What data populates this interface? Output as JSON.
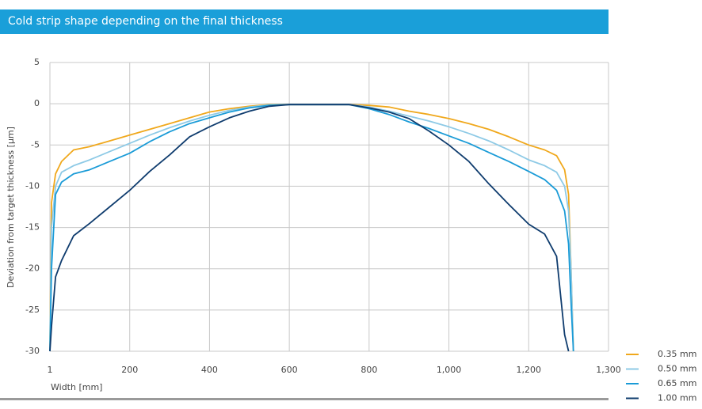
{
  "chart_data": {
    "type": "line",
    "title": "Cold strip shape depending on the final thickness",
    "xlabel": "Width [mm]",
    "ylabel": "Deviation from target thickness [µm]",
    "x": [
      1,
      5,
      15,
      30,
      60,
      100,
      150,
      200,
      250,
      300,
      350,
      400,
      450,
      500,
      550,
      600,
      650,
      700,
      750,
      800,
      850,
      900,
      950,
      1000,
      1050,
      1100,
      1150,
      1200,
      1220,
      1235,
      1245,
      1250,
      1253,
      1256
    ],
    "xlim": [
      1,
      1300
    ],
    "xticks": [
      1,
      200,
      400,
      600,
      800,
      {
        "value": 1000,
        "label": "1,000"
      },
      {
        "value": 1200,
        "label": "1,200"
      },
      {
        "value": 1300,
        "label": "1,300"
      }
    ],
    "ylim": [
      -30,
      5
    ],
    "yticks": [
      -30,
      -25,
      -20,
      -15,
      -10,
      -5,
      0,
      5
    ],
    "grid": true,
    "legend": "lower right",
    "series": [
      {
        "name": "0.35 mm",
        "color": "#f0a81c",
        "values": [
          -30,
          -12,
          -8.5,
          -7,
          -5.6,
          -5.2,
          -4.5,
          -3.8,
          -3.1,
          -2.4,
          -1.7,
          -1,
          -0.6,
          -0.3,
          -0.1,
          -0.1,
          -0.1,
          -0.1,
          -0.1,
          -0.2,
          -0.4,
          -0.9,
          -1.3,
          -1.8,
          -2.4,
          -3.1,
          -4,
          -5,
          -5.6,
          -6.3,
          -8,
          -11,
          -20,
          -30
        ]
      },
      {
        "name": "0.50 mm",
        "color": "#8ecae6",
        "values": [
          -30,
          -15,
          -10,
          -8.3,
          -7.5,
          -6.8,
          -5.8,
          -4.8,
          -3.8,
          -2.9,
          -2.1,
          -1.4,
          -0.8,
          -0.4,
          -0.15,
          -0.1,
          -0.1,
          -0.1,
          -0.1,
          -0.4,
          -0.9,
          -1.5,
          -2.1,
          -2.8,
          -3.6,
          -4.5,
          -5.6,
          -6.8,
          -7.5,
          -8.3,
          -10,
          -13,
          -20,
          -30
        ]
      },
      {
        "name": "0.65 mm",
        "color": "#1a9bd7",
        "values": [
          -30,
          -20,
          -11,
          -9.5,
          -8.5,
          -8,
          -7,
          -6,
          -4.6,
          -3.4,
          -2.4,
          -1.7,
          -1,
          -0.5,
          -0.2,
          -0.1,
          -0.1,
          -0.1,
          -0.1,
          -0.6,
          -1.3,
          -2.2,
          -3,
          -3.9,
          -4.8,
          -5.9,
          -7,
          -8.2,
          -9.2,
          -10.5,
          -13,
          -17,
          -24,
          -30
        ]
      },
      {
        "name": "1.00 mm",
        "color": "#0f3c6e",
        "values": [
          -30,
          -27,
          -21,
          -19,
          -16,
          -14.5,
          -12.5,
          -10.5,
          -8.2,
          -6.2,
          -4,
          -2.8,
          -1.7,
          -0.9,
          -0.3,
          -0.1,
          -0.1,
          -0.1,
          -0.1,
          -0.5,
          -1,
          -1.8,
          -3.3,
          -5,
          -7,
          -9.7,
          -12.2,
          -14.6,
          -15.8,
          -18.5,
          -28,
          -30,
          null,
          null
        ]
      }
    ]
  }
}
